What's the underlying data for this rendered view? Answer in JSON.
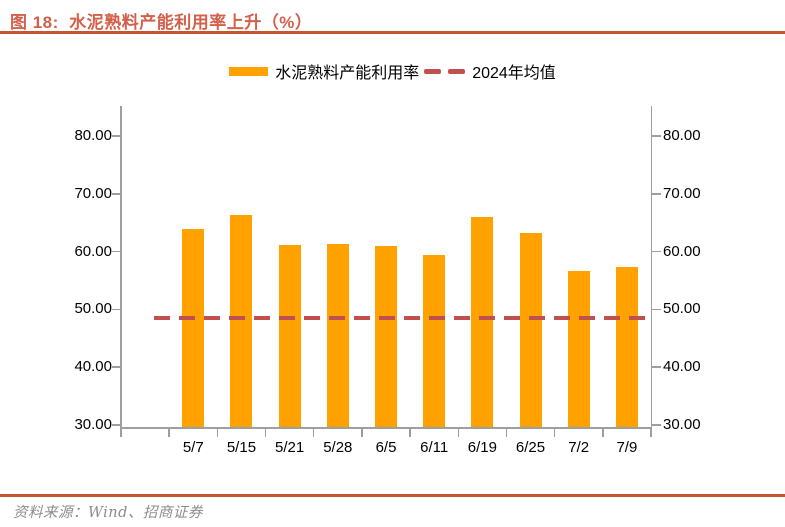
{
  "figure": {
    "title": "图 18:  水泥熟料产能利用率上升（%）"
  },
  "legend": {
    "bar_label": "水泥熟料产能利用率",
    "line_label": "2024年均值"
  },
  "source": {
    "text": "资料来源：Wind、招商证券"
  },
  "colors": {
    "bar": "#ffa200",
    "avg_line": "#c0504d",
    "title": "#d2604a",
    "rule": "#c55433",
    "axis": "#9e9e9e",
    "source_text": "#8c8c8c"
  },
  "chart_data": {
    "type": "bar",
    "title": "水泥熟料产能利用率上升（%）",
    "series_name": "水泥熟料产能利用率",
    "categories": [
      "5/7",
      "5/15",
      "5/21",
      "5/28",
      "6/5",
      "6/11",
      "6/19",
      "6/25",
      "7/2",
      "7/9"
    ],
    "values": [
      63.9,
      66.4,
      61.1,
      61.3,
      61.0,
      59.4,
      66.0,
      63.3,
      56.7,
      57.4
    ],
    "average_line": {
      "name": "2024年均值",
      "value": 48.5
    },
    "ylim": [
      30,
      80
    ],
    "yticks": [
      30,
      40,
      50,
      60,
      70,
      80
    ],
    "ytick_label_format": "two_decimals",
    "dual_y_axis": true,
    "grid": false,
    "legend_position": "top"
  }
}
